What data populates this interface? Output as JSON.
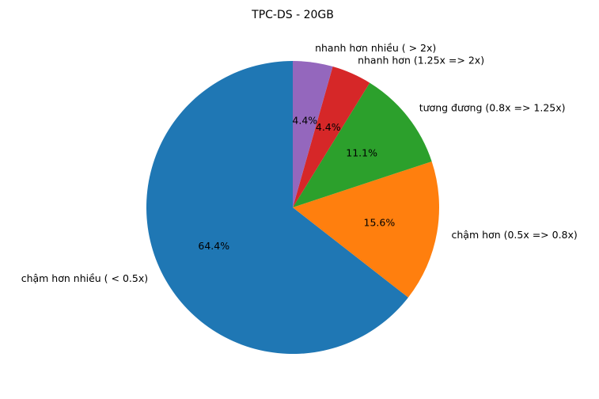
{
  "chart_data": {
    "type": "pie",
    "title": "TPC-DS - 20GB",
    "start_angle_deg": 90,
    "direction": "counterclockwise",
    "slices": [
      {
        "label": "chậm hơn nhiều ( < 0.5x)",
        "value": 64.4,
        "pct_label": "64.4%",
        "color": "#1f77b4"
      },
      {
        "label": "chậm hơn (0.5x => 0.8x)",
        "value": 15.6,
        "pct_label": "15.6%",
        "color": "#ff7f0e"
      },
      {
        "label": "tương đương (0.8x => 1.25x)",
        "value": 11.1,
        "pct_label": "11.1%",
        "color": "#2ca02c"
      },
      {
        "label": "nhanh hơn (1.25x => 2x)",
        "value": 4.4,
        "pct_label": "4.4%",
        "color": "#d62728"
      },
      {
        "label": "nhanh hơn nhiều ( > 2x)",
        "value": 4.4,
        "pct_label": "4.4%",
        "color": "#9467bd"
      }
    ]
  }
}
